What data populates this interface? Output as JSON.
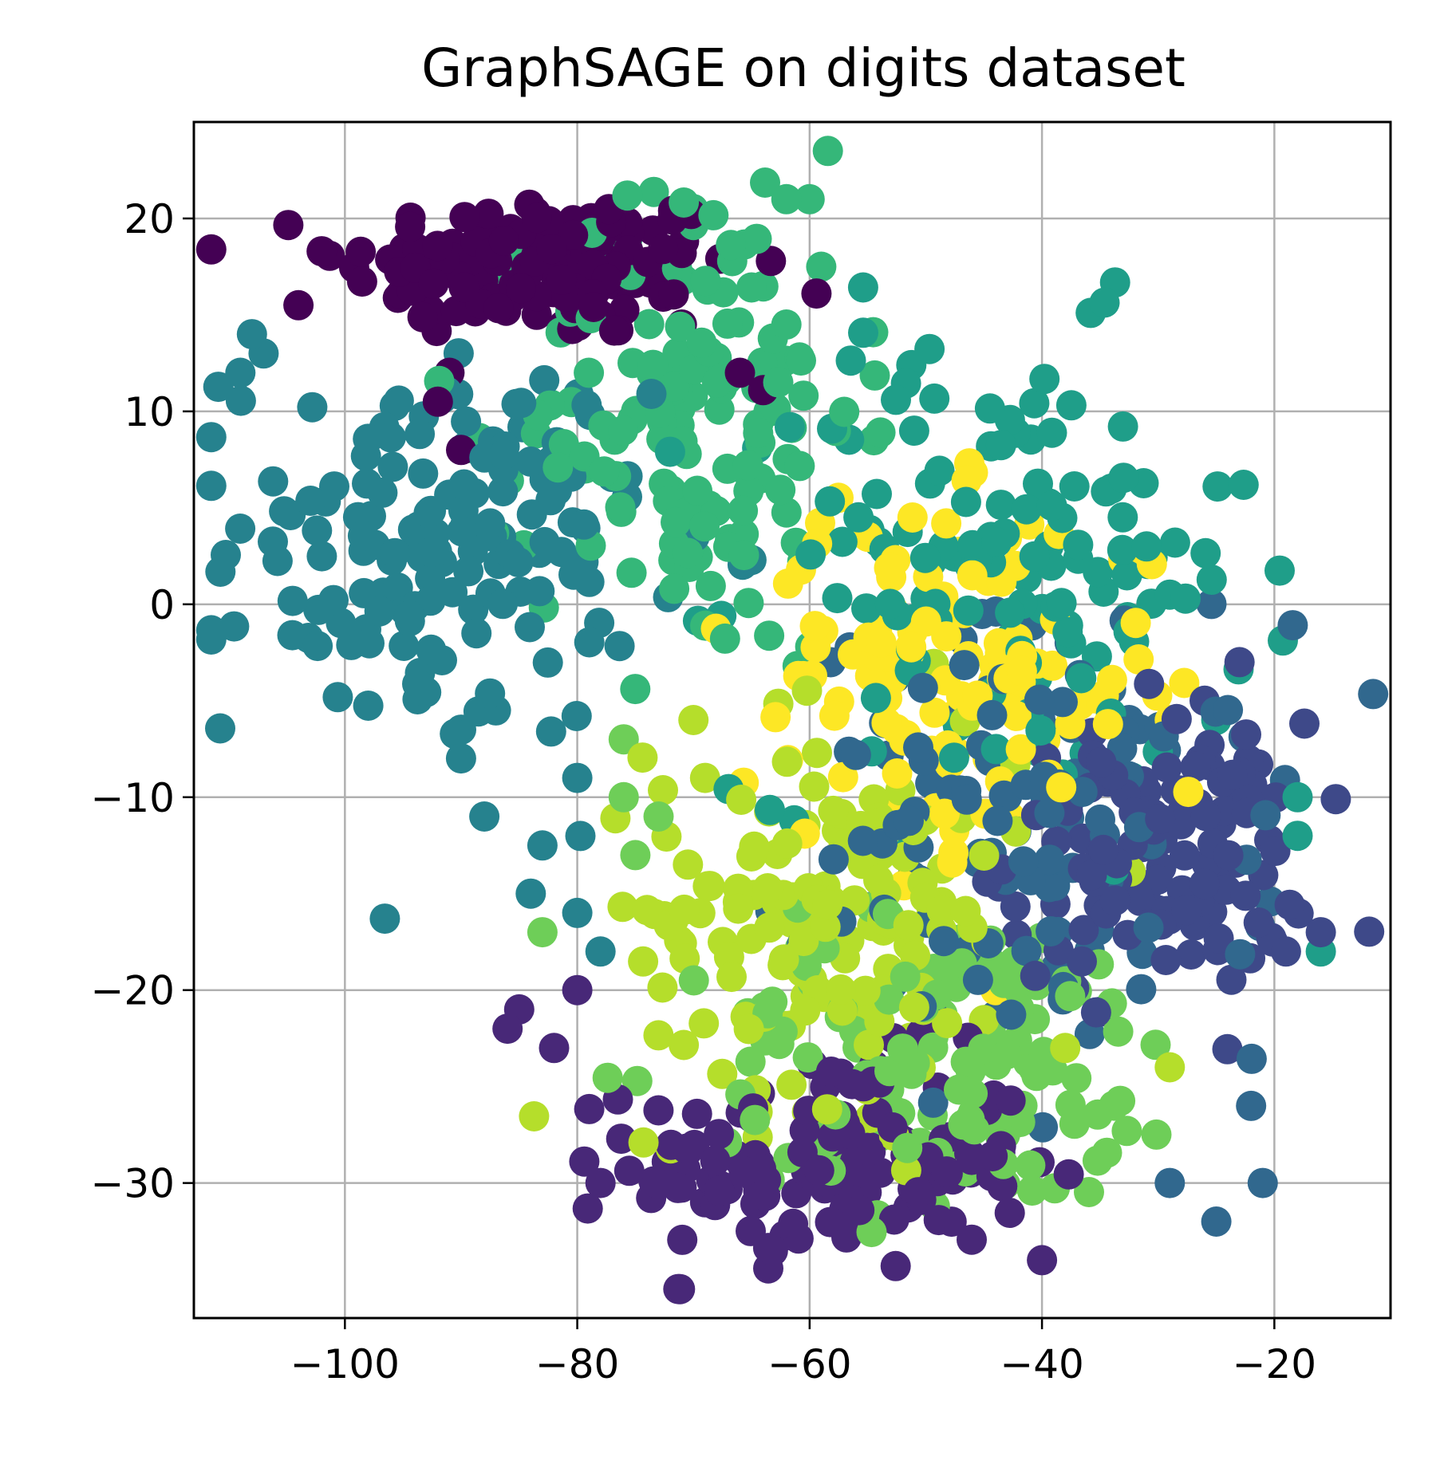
{
  "chart_data": {
    "type": "scatter",
    "title": "GraphSAGE on digits dataset",
    "xlabel": "",
    "ylabel": "",
    "xlim": [
      -113,
      -10
    ],
    "ylim": [
      -37,
      25
    ],
    "xticks": [
      -100,
      -80,
      -60,
      -40,
      -20
    ],
    "yticks": [
      20,
      10,
      0,
      -10,
      -20,
      -30
    ],
    "xtick_labels": [
      "−100",
      "−80",
      "−60",
      "−40",
      "−20"
    ],
    "ytick_labels": [
      "20",
      "10",
      "0",
      "−10",
      "−20",
      "−30"
    ],
    "grid": true,
    "legend": "none",
    "colormap": "viridis",
    "classes": [
      {
        "class": 0,
        "color": "#440154",
        "center": [
          -83,
          17.5
        ],
        "spread": [
          8.5,
          1.9
        ],
        "n": 150,
        "extra": [
          [
            -102,
            18.3
          ],
          [
            -104,
            15.5
          ],
          [
            -92,
            10.5
          ],
          [
            -90,
            8
          ],
          [
            -91,
            12
          ],
          [
            -66,
            12
          ],
          [
            -64,
            11.1
          ],
          [
            -71,
            14.5
          ]
        ]
      },
      {
        "class": 1,
        "color": "#482878",
        "center": [
          -58,
          -29
        ],
        "spread": [
          8.5,
          2.8
        ],
        "n": 150,
        "extra": [
          [
            -85,
            -21
          ],
          [
            -86,
            -22
          ],
          [
            -82,
            -23
          ],
          [
            -80,
            -20
          ],
          [
            -78,
            -30
          ],
          [
            -69,
            -31
          ],
          [
            -40,
            -34
          ]
        ]
      },
      {
        "class": 2,
        "color": "#3e4989",
        "center": [
          -30,
          -13
        ],
        "spread": [
          6.5,
          3.5
        ],
        "n": 130,
        "extra": [
          [
            -23,
            -3
          ],
          [
            -26,
            -5
          ],
          [
            -16,
            -17
          ],
          [
            -19,
            -18
          ]
        ]
      },
      {
        "class": 3,
        "color": "#31688e",
        "center": [
          -40,
          -12
        ],
        "spread": [
          10,
          5.5
        ],
        "n": 130,
        "extra": [
          [
            -25,
            -32
          ],
          [
            -21,
            -30
          ],
          [
            -29,
            -30
          ],
          [
            -22,
            -26
          ]
        ]
      },
      {
        "class": 4,
        "color": "#26828e",
        "center": [
          -92,
          3
        ],
        "spread": [
          9,
          5
        ],
        "n": 160,
        "extra": [
          [
            -108,
            14
          ],
          [
            -109,
            12
          ],
          [
            -107,
            13
          ],
          [
            -90,
            -6.5
          ],
          [
            -87,
            -5.5
          ],
          [
            -88,
            -11
          ],
          [
            -84,
            -15
          ],
          [
            -83,
            -12.5
          ],
          [
            -80,
            -9
          ],
          [
            -78,
            -18
          ],
          [
            -80,
            -16
          ]
        ]
      },
      {
        "class": 5,
        "color": "#1f9e89",
        "center": [
          -44,
          2
        ],
        "spread": [
          11,
          6
        ],
        "n": 140,
        "extra": [
          [
            -51,
            9
          ],
          [
            -34,
            6
          ],
          [
            -31,
            3
          ],
          [
            -29,
            0.5
          ],
          [
            -18,
            -10
          ],
          [
            -16,
            -18
          ],
          [
            -25,
            -6
          ],
          [
            -18,
            -12
          ]
        ]
      },
      {
        "class": 6,
        "color": "#35b779",
        "center": [
          -70,
          10
        ],
        "spread": [
          7,
          6.5
        ],
        "n": 150,
        "extra": [
          [
            -62,
            21
          ],
          [
            -60,
            21
          ],
          [
            -59,
            17.5
          ],
          [
            -62,
            14.5
          ],
          [
            -79,
            12
          ]
        ]
      },
      {
        "class": 7,
        "color": "#6ece58",
        "center": [
          -48,
          -24
        ],
        "spread": [
          11,
          4
        ],
        "n": 140,
        "extra": [
          [
            -76,
            -10
          ],
          [
            -73,
            -11
          ],
          [
            -75,
            -13
          ],
          [
            -83,
            -17
          ],
          [
            -76,
            -7
          ]
        ]
      },
      {
        "class": 8,
        "color": "#b5de2b",
        "center": [
          -58,
          -16
        ],
        "spread": [
          8,
          5
        ],
        "n": 160,
        "extra": [
          [
            -70,
            -6
          ],
          [
            -69,
            -9
          ],
          [
            -38,
            -23
          ],
          [
            -29,
            -24
          ]
        ]
      },
      {
        "class": 9,
        "color": "#fde725",
        "center": [
          -48,
          -4
        ],
        "spread": [
          9,
          4.5
        ],
        "n": 130,
        "extra": [
          [
            -55,
            3.5
          ],
          [
            -46,
            1.5
          ],
          [
            -29,
            -6
          ],
          [
            -44,
            -20
          ]
        ]
      }
    ]
  }
}
